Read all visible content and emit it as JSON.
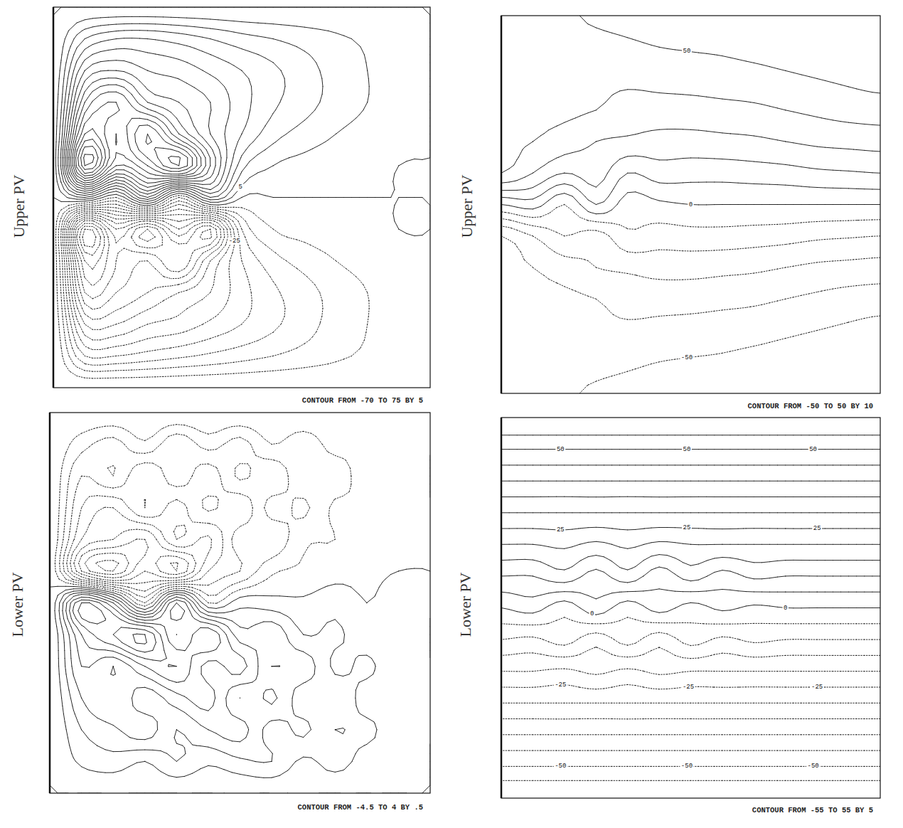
{
  "chart_data": [
    {
      "type": "contour",
      "ylabel": "Upper PV",
      "caption": "CONTOUR FROM -70 TO 75 BY 5",
      "tick_labels": false,
      "levels": [
        -70,
        -65,
        -60,
        -55,
        -50,
        -45,
        -40,
        -35,
        -30,
        -25,
        -20,
        -15,
        -10,
        -5,
        0,
        5,
        10,
        15,
        20,
        25,
        30,
        35,
        40,
        45,
        50,
        55,
        60,
        65,
        70,
        75
      ],
      "contour_labels": [
        5,
        -25
      ],
      "field": [
        [
          0,
          0,
          0,
          0,
          0,
          0,
          0,
          0,
          0,
          0,
          0,
          0,
          0
        ],
        [
          0,
          15,
          20,
          20,
          18,
          15,
          12,
          10,
          8,
          6,
          4,
          2,
          0
        ],
        [
          0,
          30,
          35,
          30,
          28,
          24,
          20,
          16,
          12,
          8,
          5,
          2,
          0
        ],
        [
          0,
          45,
          55,
          40,
          35,
          30,
          22,
          16,
          12,
          8,
          5,
          2,
          0
        ],
        [
          0,
          60,
          50,
          65,
          45,
          30,
          20,
          12,
          8,
          5,
          3,
          1,
          0
        ],
        [
          0,
          75,
          45,
          55,
          70,
          40,
          12,
          5,
          3,
          2,
          1,
          0,
          0
        ],
        [
          0,
          10,
          -5,
          20,
          -10,
          15,
          0,
          0,
          0,
          0,
          0,
          0,
          0
        ],
        [
          0,
          -70,
          -45,
          -60,
          -40,
          -55,
          -15,
          -5,
          -3,
          -2,
          -1,
          0,
          0
        ],
        [
          0,
          -60,
          -50,
          -45,
          -55,
          -35,
          -20,
          -12,
          -8,
          -5,
          -3,
          -1,
          0
        ],
        [
          0,
          -50,
          -45,
          -40,
          -35,
          -30,
          -22,
          -16,
          -12,
          -8,
          -5,
          -2,
          0
        ],
        [
          0,
          -35,
          -35,
          -30,
          -28,
          -24,
          -20,
          -16,
          -12,
          -8,
          -5,
          -2,
          0
        ],
        [
          0,
          -20,
          -20,
          -18,
          -16,
          -14,
          -12,
          -10,
          -8,
          -6,
          -4,
          -2,
          0
        ],
        [
          0,
          0,
          0,
          0,
          0,
          0,
          0,
          0,
          0,
          0,
          0,
          0,
          0
        ]
      ]
    },
    {
      "type": "contour",
      "ylabel": "Lower PV",
      "caption": "CONTOUR FROM -4.5 TO 4 BY .5",
      "tick_labels": false,
      "levels": [
        -4.5,
        -4,
        -3.5,
        -3,
        -2.5,
        -2,
        -1.5,
        -1,
        -0.5,
        0,
        0.5,
        1,
        1.5,
        2,
        2.5,
        3,
        3.5,
        4
      ],
      "contour_labels": [],
      "field": [
        [
          0,
          0,
          0,
          0,
          0,
          0,
          0,
          0,
          0,
          0,
          0,
          0,
          0
        ],
        [
          0,
          -0.8,
          -1.2,
          -0.6,
          -1.4,
          -0.8,
          -1.2,
          -0.5,
          -0.8,
          -0.3,
          -0.4,
          -0.1,
          0
        ],
        [
          0,
          -1.5,
          -1.0,
          -2.0,
          -1.2,
          -1.8,
          -0.9,
          -1.4,
          -0.6,
          -0.8,
          -0.2,
          -0.3,
          0
        ],
        [
          0,
          -2.0,
          -2.5,
          -1.5,
          -2.2,
          -1.4,
          -1.9,
          -0.8,
          -1.1,
          -0.4,
          -0.5,
          -0.1,
          0
        ],
        [
          0,
          -2.5,
          -3.0,
          -3.5,
          -2.0,
          -2.6,
          -1.2,
          -1.4,
          -0.6,
          -0.5,
          -0.2,
          -0.1,
          0
        ],
        [
          0,
          -3.5,
          -4.5,
          -3.0,
          -4.0,
          -2.0,
          -1.5,
          -0.6,
          -0.4,
          -0.2,
          -0.1,
          0,
          0
        ],
        [
          0,
          3.5,
          2.0,
          -1.0,
          2.5,
          -0.5,
          0.3,
          0.2,
          0.1,
          0.3,
          0,
          0.2,
          0
        ],
        [
          0,
          2.5,
          3.5,
          4.0,
          2.0,
          3.0,
          1.2,
          1.4,
          0.5,
          0.6,
          0.2,
          0.3,
          0
        ],
        [
          0,
          2.0,
          1.5,
          2.5,
          3.0,
          1.8,
          2.2,
          1.0,
          1.3,
          0.4,
          0.6,
          0.1,
          0
        ],
        [
          0,
          1.5,
          2.0,
          1.2,
          1.8,
          2.2,
          1.0,
          1.6,
          0.7,
          0.9,
          0.3,
          0.4,
          0
        ],
        [
          0,
          1.0,
          1.4,
          1.8,
          1.0,
          1.5,
          1.7,
          0.8,
          1.1,
          0.5,
          0.6,
          0.2,
          0
        ],
        [
          0,
          0.6,
          0.8,
          0.5,
          1.0,
          0.6,
          0.9,
          1.0,
          0.4,
          0.7,
          0.3,
          0.3,
          0
        ],
        [
          0,
          0,
          0,
          0,
          0,
          0,
          0,
          0,
          0,
          0,
          0,
          0,
          0
        ]
      ]
    },
    {
      "type": "contour",
      "ylabel": "Upper PV",
      "caption": "CONTOUR FROM -50 TO 50 BY 10",
      "tick_labels": false,
      "levels": [
        -50,
        -40,
        -30,
        -20,
        -10,
        0,
        10,
        20,
        30,
        40,
        50
      ],
      "contour_labels": [
        50,
        0,
        -50
      ],
      "field": [
        [
          45,
          45,
          48,
          52,
          54,
          56,
          58,
          60,
          62,
          64,
          66,
          68,
          70
        ],
        [
          45,
          44,
          45,
          46,
          48,
          50,
          51,
          52,
          54,
          56,
          58,
          60,
          62
        ],
        [
          45,
          44,
          43,
          42,
          42,
          43,
          44,
          45,
          46,
          48,
          50,
          52,
          54
        ],
        [
          44,
          42,
          42,
          40,
          36,
          36,
          36,
          37,
          38,
          40,
          42,
          44,
          45
        ],
        [
          42,
          40,
          35,
          30,
          28,
          26,
          26,
          27,
          28,
          30,
          32,
          33,
          34
        ],
        [
          40,
          30,
          20,
          25,
          10,
          15,
          14,
          14,
          15,
          16,
          18,
          19,
          20
        ],
        [
          0,
          5,
          -10,
          10,
          -5,
          -2,
          0,
          0,
          0,
          0,
          0,
          0,
          0
        ],
        [
          -40,
          -30,
          -20,
          -25,
          -12,
          -15,
          -14,
          -14,
          -15,
          -16,
          -18,
          -19,
          -20
        ],
        [
          -42,
          -40,
          -35,
          -30,
          -28,
          -26,
          -26,
          -27,
          -28,
          -30,
          -32,
          -33,
          -34
        ],
        [
          -44,
          -42,
          -42,
          -40,
          -36,
          -36,
          -36,
          -37,
          -38,
          -40,
          -42,
          -44,
          -45
        ],
        [
          -45,
          -44,
          -43,
          -42,
          -42,
          -43,
          -44,
          -45,
          -46,
          -48,
          -50,
          -52,
          -54
        ],
        [
          -45,
          -44,
          -45,
          -46,
          -48,
          -50,
          -51,
          -52,
          -54,
          -56,
          -58,
          -60,
          -62
        ],
        [
          -45,
          -45,
          -48,
          -52,
          -54,
          -56,
          -58,
          -60,
          -62,
          -64,
          -66,
          -68,
          -70
        ]
      ]
    },
    {
      "type": "contour",
      "ylabel": "Lower PV",
      "caption": "CONTOUR FROM -55 TO 55 BY 5",
      "tick_labels": false,
      "levels": [
        -55,
        -50,
        -45,
        -40,
        -35,
        -30,
        -25,
        -20,
        -15,
        -10,
        -5,
        0,
        5,
        10,
        15,
        20,
        25,
        30,
        35,
        40,
        45,
        50,
        55
      ],
      "contour_labels": [
        50,
        50,
        50,
        25,
        25,
        25,
        0,
        0,
        -25,
        -25,
        -25,
        -50,
        -50,
        -50
      ],
      "field": [
        [
          60,
          60,
          60,
          60,
          60,
          60,
          60,
          60,
          60,
          60,
          60,
          60,
          60
        ],
        [
          50,
          50,
          50,
          50,
          50,
          50,
          50,
          50,
          50,
          50,
          50,
          50,
          50
        ],
        [
          40,
          40,
          40,
          40,
          40,
          40,
          40,
          40,
          40,
          40,
          40,
          40,
          40
        ],
        [
          30,
          30,
          30,
          30,
          30,
          30,
          30,
          30,
          30,
          30,
          30,
          30,
          30
        ],
        [
          20,
          20,
          21,
          19,
          21,
          19,
          20,
          20,
          20,
          20,
          20,
          20,
          20
        ],
        [
          10,
          10,
          13,
          8,
          13,
          7,
          12,
          8,
          11,
          10,
          10,
          10,
          10
        ],
        [
          0,
          2,
          -3,
          3,
          -3,
          2,
          -2,
          1,
          -1,
          0,
          0,
          0,
          0
        ],
        [
          -10,
          -11,
          -8,
          -13,
          -8,
          -13,
          -8,
          -11,
          -9,
          -10,
          -10,
          -10,
          -10
        ],
        [
          -20,
          -20,
          -21,
          -19,
          -21,
          -19,
          -20,
          -20,
          -20,
          -20,
          -20,
          -20,
          -20
        ],
        [
          -30,
          -30,
          -30,
          -30,
          -30,
          -30,
          -30,
          -30,
          -30,
          -30,
          -30,
          -30,
          -30
        ],
        [
          -40,
          -40,
          -40,
          -40,
          -40,
          -40,
          -40,
          -40,
          -40,
          -40,
          -40,
          -40,
          -40
        ],
        [
          -50,
          -50,
          -50,
          -50,
          -50,
          -50,
          -50,
          -50,
          -50,
          -50,
          -50,
          -50,
          -50
        ],
        [
          -60,
          -60,
          -60,
          -60,
          -60,
          -60,
          -60,
          -60,
          -60,
          -60,
          -60,
          -60,
          -60
        ]
      ]
    }
  ]
}
